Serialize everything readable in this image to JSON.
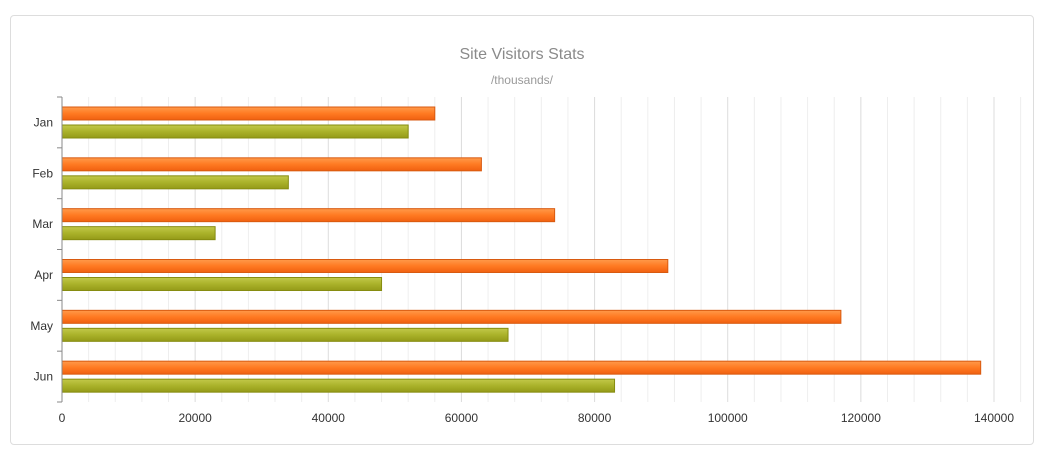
{
  "chart_data": {
    "type": "bar",
    "orientation": "horizontal",
    "title": "Site Visitors Stats",
    "subtitle": "/thousands/",
    "categories": [
      "Jan",
      "Feb",
      "Mar",
      "Apr",
      "May",
      "Jun"
    ],
    "series": [
      {
        "values": [
          56000,
          63000,
          74000,
          91000,
          117000,
          138000
        ],
        "color": "#ff7a22"
      },
      {
        "values": [
          52000,
          34000,
          23000,
          48000,
          67000,
          83000
        ],
        "color": "#a8b02a"
      }
    ],
    "xlim": [
      0,
      144000
    ],
    "xticks": [
      "0",
      "20000",
      "40000",
      "60000",
      "80000",
      "100000",
      "120000",
      "140000"
    ],
    "grid": true,
    "legend": "none"
  }
}
